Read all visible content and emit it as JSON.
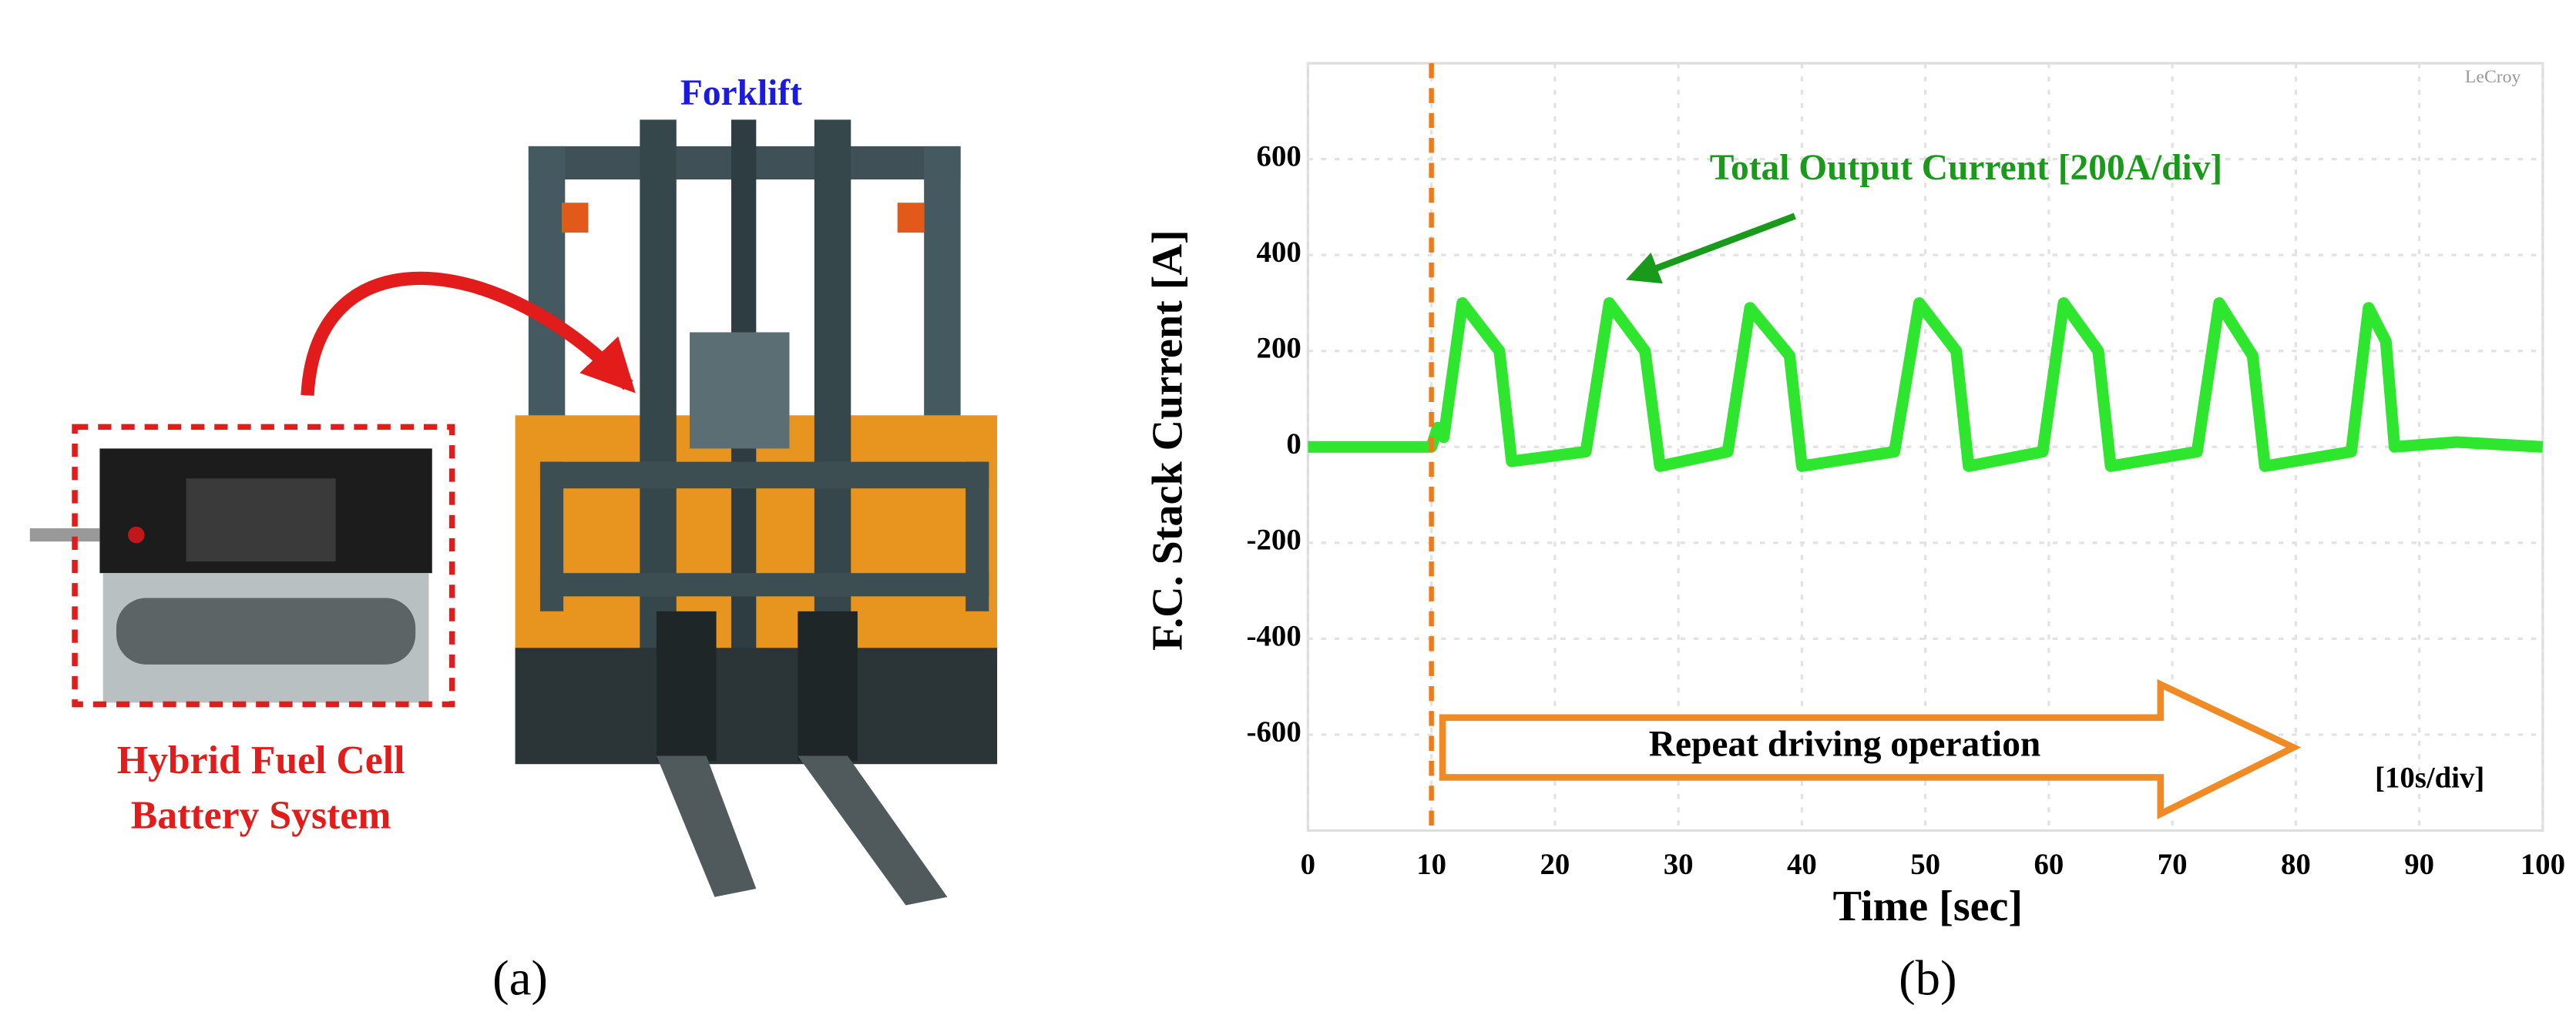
{
  "panel_a": {
    "vehicle_label": "Forklift",
    "system_label_lines": [
      "Hybrid Fuel Cell",
      "Battery System"
    ],
    "caption": "(a)"
  },
  "chart_data": {
    "type": "line",
    "ylabel": "F.C. Stack Current  [A]",
    "xlabel": "Time  [sec]",
    "caption": "(b)",
    "watermark": "LeCroy",
    "annotations": {
      "current": "Total Output Current [200A/div]",
      "operation": "Repeat driving operation",
      "time_scale": "[10s/div]"
    },
    "start_marker": 10,
    "x": [
      0,
      10,
      10.5,
      11,
      12.5,
      15.5,
      16.5,
      22.5,
      24.4,
      27.3,
      28.5,
      34,
      35.8,
      39,
      40,
      47.5,
      49.5,
      52.5,
      53.5,
      59.5,
      61.2,
      64,
      65,
      72,
      73.8,
      76.5,
      77.5,
      84.5,
      85.9,
      87.3,
      88,
      93,
      100
    ],
    "series": [
      {
        "name": "F.C. Stack Current",
        "color": "#2ee62e",
        "values": [
          0,
          0,
          40,
          20,
          300,
          200,
          -30,
          -10,
          300,
          200,
          -40,
          -10,
          290,
          190,
          -40,
          -10,
          300,
          200,
          -40,
          -10,
          300,
          200,
          -40,
          -10,
          300,
          190,
          -40,
          -10,
          290,
          220,
          0,
          10,
          0
        ]
      }
    ],
    "xlim": [
      0,
      100
    ],
    "xticks": [
      0,
      10,
      20,
      30,
      40,
      50,
      60,
      70,
      80,
      90,
      100
    ],
    "ylim": [
      -800,
      800
    ],
    "yticks": [
      -600,
      -400,
      -200,
      0,
      200,
      400,
      600
    ],
    "grid": true
  }
}
